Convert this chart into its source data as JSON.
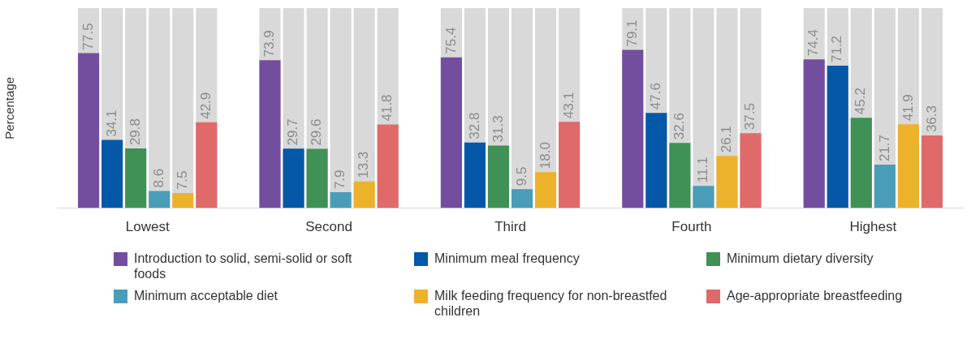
{
  "chart_data": {
    "type": "bar",
    "ylabel": "Percentage",
    "categories": [
      "Lowest",
      "Second",
      "Third",
      "Fourth",
      "Highest"
    ],
    "ylim": [
      0,
      100
    ],
    "tick_labels": "x",
    "data_labels": true,
    "grid": false,
    "legend": "bottom",
    "series": [
      {
        "name": "Introduction to solid, semi-solid or soft foods",
        "color": "#744e9e",
        "values": [
          77.5,
          73.9,
          75.4,
          79.1,
          74.4
        ]
      },
      {
        "name": "Minimum meal frequency",
        "color": "#0558a8",
        "values": [
          34.1,
          29.7,
          32.8,
          47.6,
          71.2
        ]
      },
      {
        "name": "Minimum dietary diversity",
        "color": "#3f9156",
        "values": [
          29.8,
          29.6,
          31.3,
          32.6,
          45.2
        ]
      },
      {
        "name": "Minimum acceptable diet",
        "color": "#4a9db8",
        "values": [
          8.6,
          7.9,
          9.5,
          11.1,
          21.7
        ]
      },
      {
        "name": "Milk feeding frequency for non-breastfed children",
        "color": "#edb22c",
        "values": [
          7.5,
          13.3,
          18.0,
          26.1,
          41.9
        ],
        "value_labels": [
          "7.5",
          "13.3",
          "18.0",
          "26.1",
          "41.9"
        ]
      },
      {
        "name": "Age-appropriate breastfeeding",
        "color": "#e06a6a",
        "values": [
          42.9,
          41.8,
          43.1,
          37.5,
          36.3
        ]
      }
    ]
  }
}
